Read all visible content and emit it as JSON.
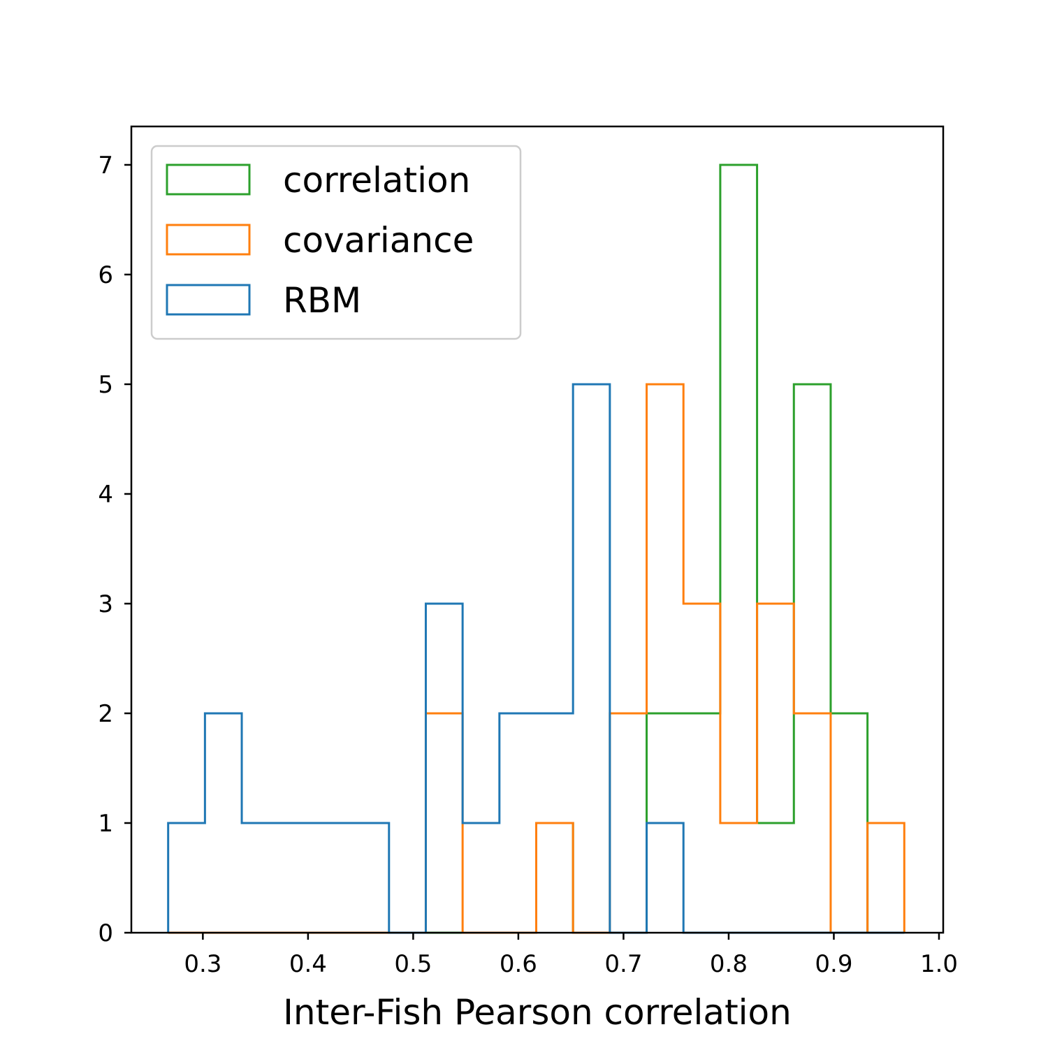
{
  "chart_data": {
    "type": "histogram",
    "title": "",
    "xlabel": "Inter-Fish Pearson correlation",
    "ylabel": "",
    "xlim": [
      0.232,
      1.004
    ],
    "ylim": [
      0,
      7.35
    ],
    "xticks": [
      "0.3",
      "0.4",
      "0.5",
      "0.6",
      "0.7",
      "0.8",
      "0.9",
      "1.0"
    ],
    "yticks": [
      "0",
      "1",
      "2",
      "3",
      "4",
      "5",
      "6",
      "7"
    ],
    "grid": false,
    "legend_position": "top-left",
    "bin_edges": [
      0.267,
      0.302,
      0.337,
      0.372,
      0.407,
      0.442,
      0.477,
      0.512,
      0.547,
      0.582,
      0.617,
      0.652,
      0.687,
      0.722,
      0.757,
      0.792,
      0.827,
      0.862,
      0.897,
      0.932,
      0.967
    ],
    "series": [
      {
        "name": "correlation",
        "color": "#2ca02c",
        "counts": [
          0,
          0,
          0,
          0,
          0,
          0,
          0,
          0,
          0,
          0,
          1,
          0,
          0,
          2,
          2,
          7,
          1,
          5,
          2,
          0
        ]
      },
      {
        "name": "covariance",
        "color": "#ff7f0e",
        "counts": [
          0,
          0,
          0,
          0,
          0,
          0,
          0,
          2,
          0,
          0,
          1,
          0,
          2,
          5,
          3,
          1,
          3,
          2,
          0,
          1
        ]
      },
      {
        "name": "RBM",
        "color": "#1f77b4",
        "counts": [
          1,
          2,
          1,
          1,
          1,
          1,
          0,
          3,
          1,
          2,
          2,
          5,
          0,
          1,
          0,
          0,
          0,
          0,
          0,
          0
        ]
      }
    ]
  }
}
